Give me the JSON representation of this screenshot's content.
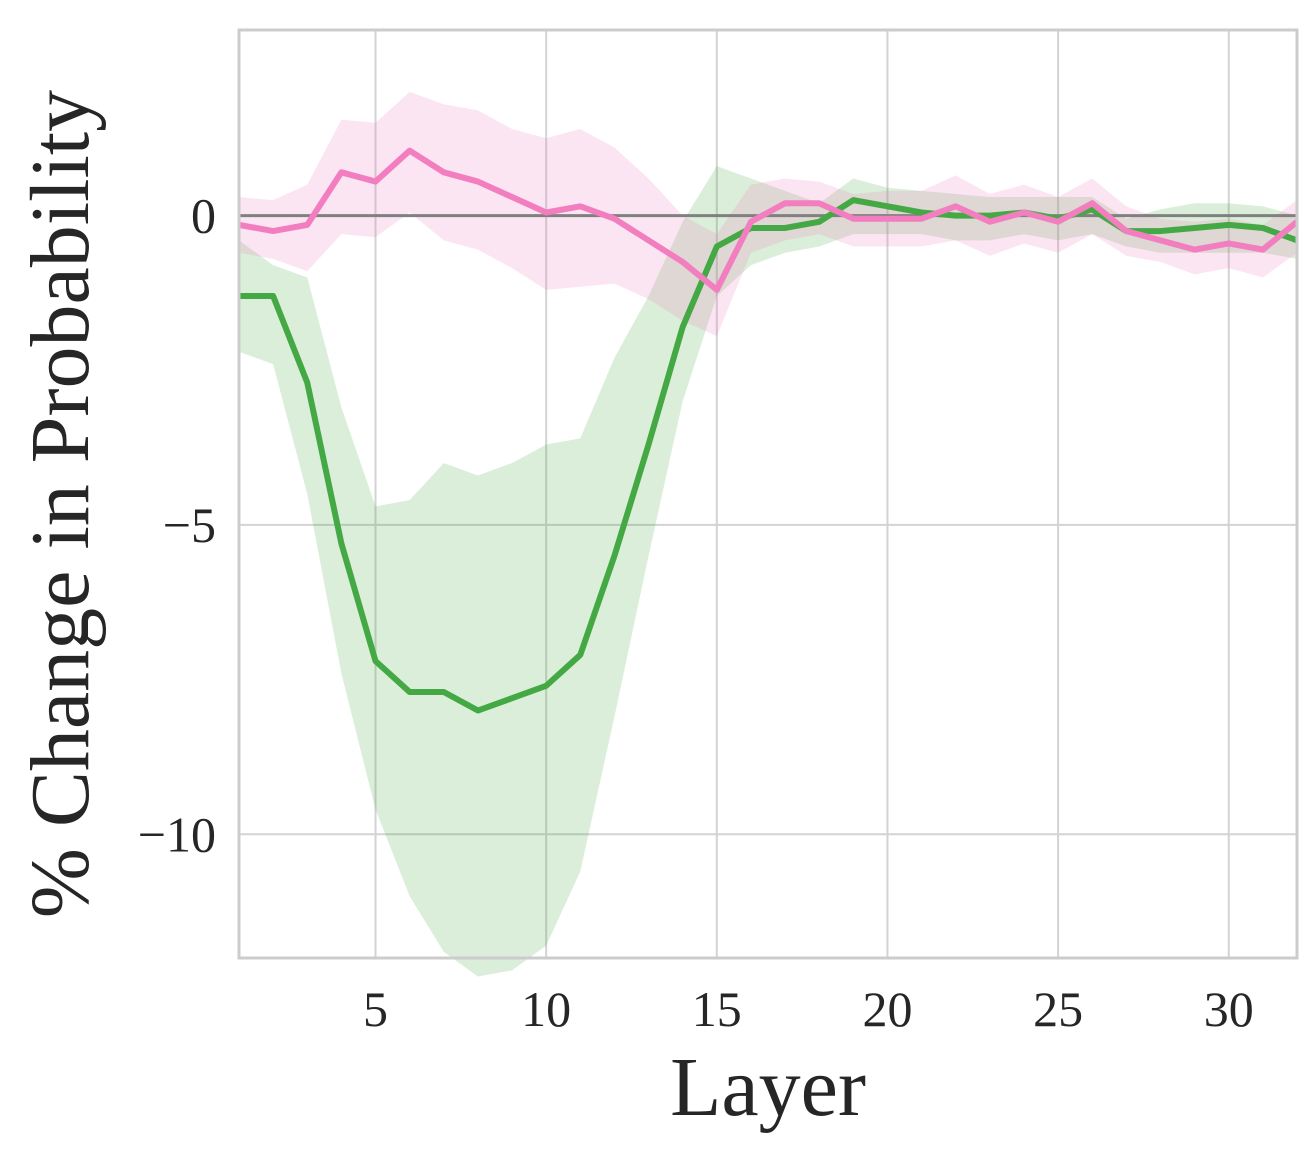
{
  "chart_data": {
    "type": "line",
    "xlabel": "Layer",
    "ylabel": "% Change in Probability",
    "xlim": [
      1,
      32
    ],
    "ylim": [
      -12,
      3
    ],
    "xticks": [
      5,
      10,
      15,
      20,
      25,
      30
    ],
    "yticks": [
      0,
      -5,
      -10
    ],
    "ytick_labels": [
      "0",
      "−5",
      "−10"
    ],
    "grid": true,
    "reference_line": {
      "y": 0,
      "color": "#808080"
    },
    "x": [
      1,
      2,
      3,
      4,
      5,
      6,
      7,
      8,
      9,
      10,
      11,
      12,
      13,
      14,
      15,
      16,
      17,
      18,
      19,
      20,
      21,
      22,
      23,
      24,
      25,
      26,
      27,
      28,
      29,
      30,
      31,
      32
    ],
    "series": [
      {
        "color": "#44a944",
        "band_color": "#44a944",
        "values": [
          -1.3,
          -1.3,
          -2.7,
          -5.3,
          -7.2,
          -7.7,
          -7.7,
          -8.0,
          -7.8,
          -7.6,
          -7.1,
          -5.5,
          -3.7,
          -1.8,
          -0.5,
          -0.2,
          -0.2,
          -0.1,
          0.25,
          0.15,
          0.05,
          0.0,
          0.0,
          0.05,
          -0.05,
          0.1,
          -0.25,
          -0.25,
          -0.2,
          -0.15,
          -0.2,
          -0.4
        ],
        "lower": [
          -2.2,
          -2.4,
          -4.5,
          -7.4,
          -9.6,
          -11.0,
          -11.9,
          -12.3,
          -12.2,
          -11.8,
          -10.6,
          -8.1,
          -5.5,
          -3.0,
          -1.3,
          -0.8,
          -0.6,
          -0.5,
          -0.3,
          -0.3,
          -0.3,
          -0.4,
          -0.4,
          -0.3,
          -0.4,
          -0.3,
          -0.5,
          -0.6,
          -0.6,
          -0.6,
          -0.6,
          -0.7
        ],
        "upper": [
          -0.4,
          -0.8,
          -1.0,
          -3.1,
          -4.7,
          -4.6,
          -4.0,
          -4.2,
          -4.0,
          -3.7,
          -3.6,
          -2.3,
          -1.3,
          -0.1,
          0.8,
          0.6,
          0.4,
          0.2,
          0.6,
          0.45,
          0.4,
          0.35,
          0.3,
          0.3,
          0.3,
          0.3,
          -0.05,
          0.1,
          0.2,
          0.2,
          0.15,
          0.0
        ]
      },
      {
        "color": "#f27ec0",
        "band_color": "#f27ec0",
        "values": [
          -0.15,
          -0.25,
          -0.15,
          0.7,
          0.55,
          1.05,
          0.7,
          0.55,
          0.3,
          0.05,
          0.15,
          -0.05,
          -0.4,
          -0.75,
          -1.2,
          -0.1,
          0.2,
          0.2,
          -0.05,
          -0.05,
          -0.05,
          0.15,
          -0.1,
          0.05,
          -0.1,
          0.2,
          -0.25,
          -0.4,
          -0.55,
          -0.45,
          -0.55,
          -0.1
        ],
        "lower": [
          -0.6,
          -0.7,
          -0.9,
          -0.3,
          -0.35,
          0.05,
          -0.4,
          -0.55,
          -0.85,
          -1.2,
          -1.15,
          -1.1,
          -1.35,
          -1.7,
          -1.95,
          -0.6,
          -0.4,
          -0.3,
          -0.5,
          -0.5,
          -0.5,
          -0.4,
          -0.65,
          -0.45,
          -0.6,
          -0.3,
          -0.65,
          -0.75,
          -0.95,
          -0.85,
          -1.0,
          -0.6
        ],
        "upper": [
          0.3,
          0.25,
          0.5,
          1.55,
          1.5,
          2.0,
          1.8,
          1.7,
          1.4,
          1.25,
          1.4,
          1.1,
          0.6,
          0.0,
          -0.3,
          0.5,
          0.6,
          0.55,
          0.35,
          0.4,
          0.4,
          0.65,
          0.35,
          0.5,
          0.3,
          0.6,
          0.15,
          -0.05,
          -0.1,
          -0.05,
          -0.15,
          0.25
        ]
      }
    ]
  }
}
